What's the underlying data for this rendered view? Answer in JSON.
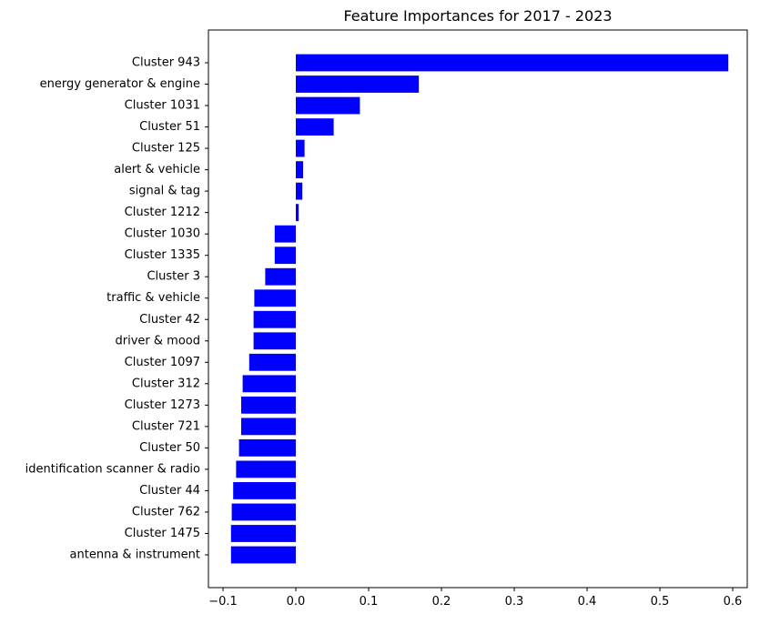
{
  "chart_data": {
    "type": "bar",
    "orientation": "horizontal",
    "title": "Feature Importances for 2017 - 2023",
    "xlabel": "",
    "ylabel": "",
    "bar_color": "#0000ff",
    "xlim": [
      -0.12,
      0.62
    ],
    "x_ticks": [
      -0.1,
      0.0,
      0.1,
      0.2,
      0.3,
      0.4,
      0.5,
      0.6
    ],
    "x_tick_labels": [
      "−0.1",
      "0.0",
      "0.1",
      "0.2",
      "0.3",
      "0.4",
      "0.5",
      "0.6"
    ],
    "grid": false,
    "categories": [
      "Cluster 943",
      "energy generator & engine",
      "Cluster 1031",
      "Cluster 51",
      "Cluster 125",
      "alert & vehicle",
      "signal & tag",
      "Cluster 1212",
      "Cluster 1030",
      "Cluster 1335",
      "Cluster 3",
      "traffic & vehicle",
      "Cluster 42",
      "driver & mood",
      "Cluster 1097",
      "Cluster 312",
      "Cluster 1273",
      "Cluster 721",
      "Cluster 50",
      "identification scanner & radio",
      "Cluster 44",
      "Cluster 762",
      "Cluster 1475",
      "antenna & instrument"
    ],
    "values": [
      0.594,
      0.169,
      0.088,
      0.052,
      0.012,
      0.01,
      0.009,
      0.004,
      -0.029,
      -0.029,
      -0.042,
      -0.057,
      -0.058,
      -0.058,
      -0.064,
      -0.073,
      -0.075,
      -0.075,
      -0.078,
      -0.082,
      -0.086,
      -0.088,
      -0.089,
      -0.089
    ]
  }
}
